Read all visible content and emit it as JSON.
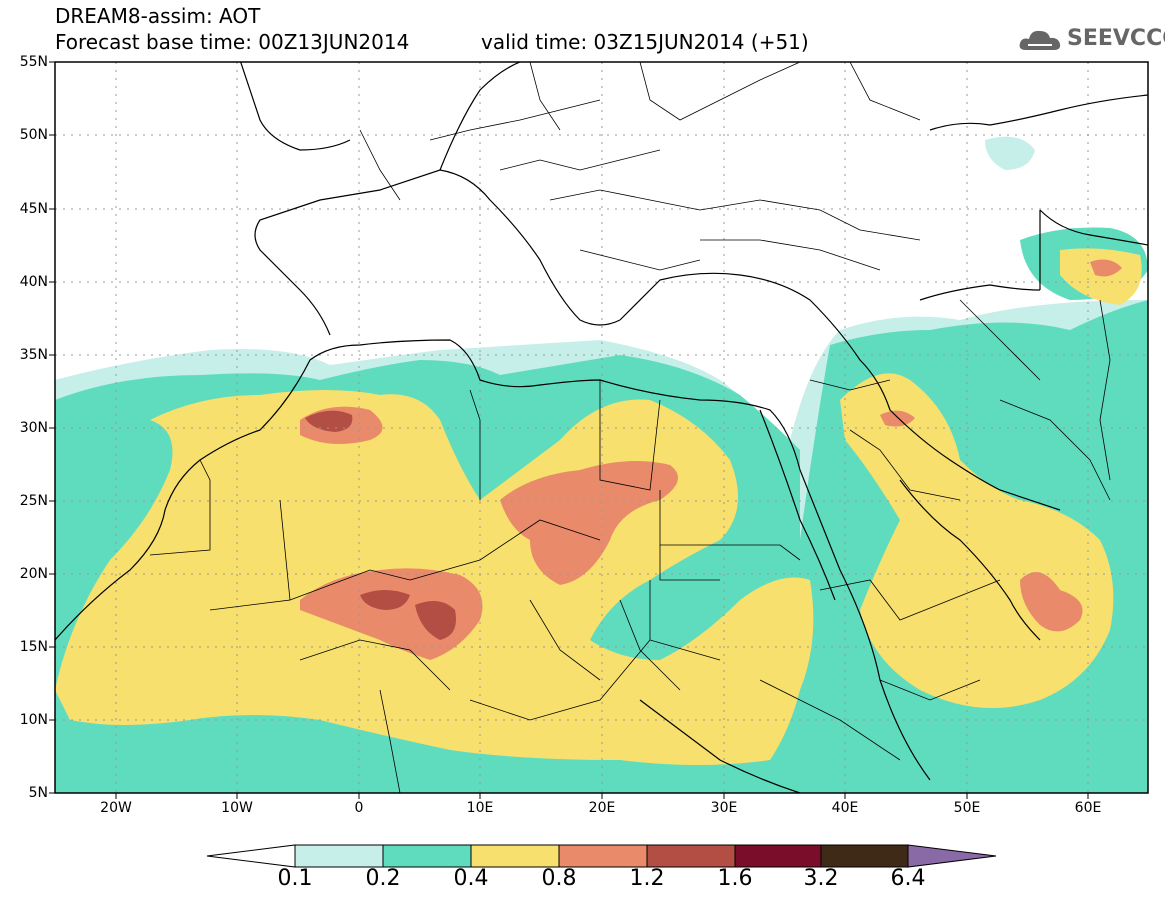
{
  "header": {
    "title_line1": "DREAM8-assim: AOT",
    "title_line2": "Forecast base time: 00Z13JUN2014",
    "valid_time": "valid time: 03Z15JUN2014 (+51)",
    "logo_text": "SEEVCCC"
  },
  "map": {
    "lat_labels": [
      "55N",
      "50N",
      "45N",
      "40N",
      "35N",
      "30N",
      "25N",
      "20N",
      "15N",
      "10N",
      "5N"
    ],
    "lon_labels": [
      "20W",
      "10W",
      "0",
      "10E",
      "20E",
      "30E",
      "40E",
      "50E",
      "60E"
    ],
    "colors": {
      "c01": "#c6efe9",
      "c02": "#5fdcbe",
      "c04": "#f7e06d",
      "c08": "#e98a6a",
      "c12": "#b24e43",
      "c16": "#7a0e2a",
      "c32": "#3e2a17",
      "c64": "#8a6aa6"
    }
  },
  "colorbar": {
    "labels": [
      "0.1",
      "0.2",
      "0.4",
      "0.8",
      "1.2",
      "1.6",
      "3.2",
      "6.4"
    ],
    "colors": [
      "#ffffff",
      "#c6efe9",
      "#5fdcbe",
      "#f7e06d",
      "#e98a6a",
      "#b24e43",
      "#7a0e2a",
      "#3e2a17",
      "#8a6aa6"
    ]
  }
}
